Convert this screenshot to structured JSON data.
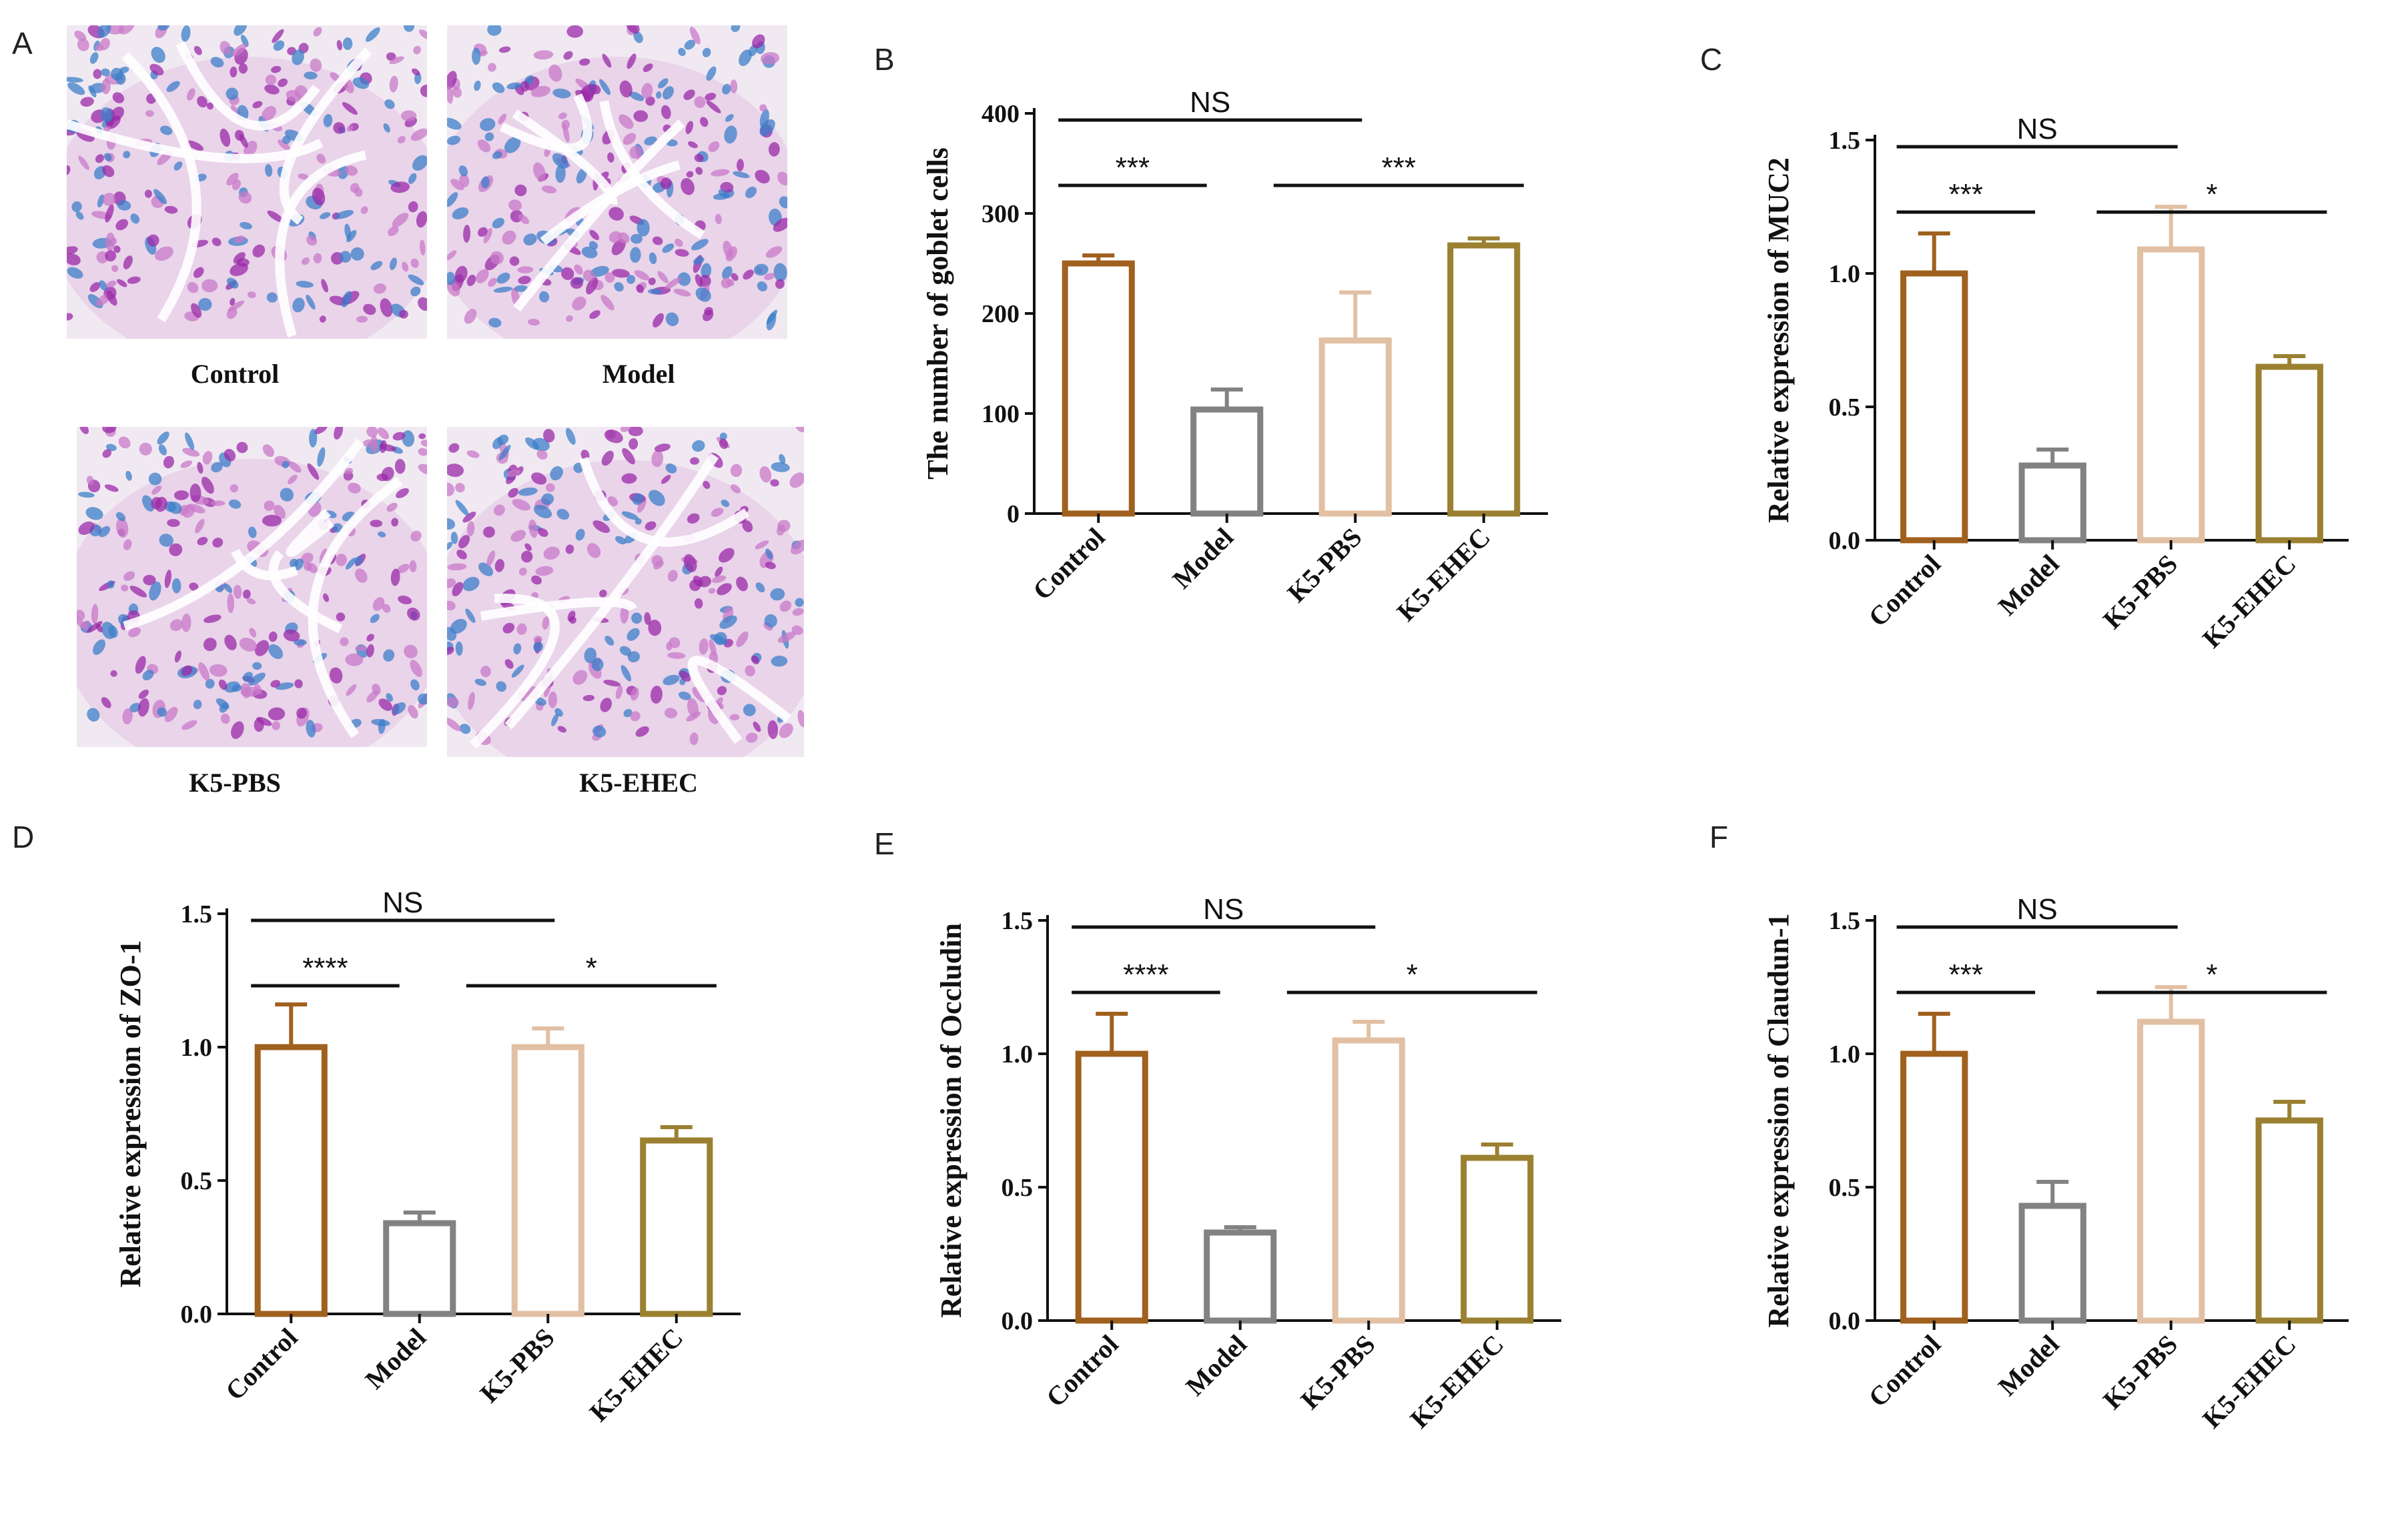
{
  "panels": {
    "A": "A",
    "B": "B",
    "C": "C",
    "D": "D",
    "E": "E",
    "F": "F"
  },
  "micrographs": [
    {
      "label": "Control"
    },
    {
      "label": "Model"
    },
    {
      "label": "K5-PBS"
    },
    {
      "label": "K5-EHEC"
    }
  ],
  "colors": {
    "Control": "#a0601e",
    "Model": "#828282",
    "K5-PBS": "#e2c0a4",
    "K5-EHEC": "#9a8030",
    "tissue_pink": "#c87ac8",
    "tissue_blue": "#3c7fc8",
    "tissue_magenta": "#9a2aa8"
  },
  "chart_data": [
    {
      "id": "B",
      "type": "bar",
      "ylabel": "The number of goblet cells",
      "categories": [
        "Control",
        "Model",
        "K5-PBS",
        "K5-EHEC"
      ],
      "values": [
        250,
        104,
        173,
        268
      ],
      "errors": [
        8,
        20,
        48,
        7
      ],
      "ylim": [
        0,
        400
      ],
      "yticks": [
        "0",
        "100",
        "200",
        "300",
        "400"
      ],
      "tick_values": [
        0,
        100,
        200,
        300,
        400
      ],
      "comparisons": [
        {
          "label": "NS",
          "from": 0,
          "to": 2,
          "level": 0
        },
        {
          "label": "***",
          "from": 0,
          "to": 1,
          "level": 1
        },
        {
          "label": "***",
          "from": 1,
          "to": 3,
          "level": 1
        }
      ]
    },
    {
      "id": "C",
      "type": "bar",
      "ylabel": "Relative expression of MUC2",
      "categories": [
        "Control",
        "Model",
        "K5-PBS",
        "K5-EHEC"
      ],
      "values": [
        1.0,
        0.28,
        1.09,
        0.65
      ],
      "errors": [
        0.15,
        0.06,
        0.16,
        0.04
      ],
      "ylim": [
        0,
        1.5
      ],
      "yticks": [
        "0.0",
        "0.5",
        "1.0",
        "1.5"
      ],
      "tick_values": [
        0,
        0.5,
        1.0,
        1.5
      ],
      "comparisons": [
        {
          "label": "NS",
          "from": 0,
          "to": 2,
          "level": 0
        },
        {
          "label": "***",
          "from": 0,
          "to": 1,
          "level": 1
        },
        {
          "label": "*",
          "from": 1,
          "to": 3,
          "level": 1
        }
      ]
    },
    {
      "id": "D",
      "type": "bar",
      "ylabel": "Relative expression of ZO-1",
      "categories": [
        "Control",
        "Model",
        "K5-PBS",
        "K5-EHEC"
      ],
      "values": [
        1.0,
        0.34,
        1.0,
        0.65
      ],
      "errors": [
        0.16,
        0.04,
        0.07,
        0.05
      ],
      "ylim": [
        0,
        1.5
      ],
      "yticks": [
        "0.0",
        "0.5",
        "1.0",
        "1.5"
      ],
      "tick_values": [
        0,
        0.5,
        1.0,
        1.5
      ],
      "comparisons": [
        {
          "label": "NS",
          "from": 0,
          "to": 2,
          "level": 0
        },
        {
          "label": "****",
          "from": 0,
          "to": 1,
          "level": 1
        },
        {
          "label": "*",
          "from": 1,
          "to": 3,
          "level": 1
        }
      ]
    },
    {
      "id": "E",
      "type": "bar",
      "ylabel": "Relative expression of Occludin",
      "categories": [
        "Control",
        "Model",
        "K5-PBS",
        "K5-EHEC"
      ],
      "values": [
        1.0,
        0.33,
        1.05,
        0.61
      ],
      "errors": [
        0.15,
        0.02,
        0.07,
        0.05
      ],
      "ylim": [
        0,
        1.5
      ],
      "yticks": [
        "0.0",
        "0.5",
        "1.0",
        "1.5"
      ],
      "tick_values": [
        0,
        0.5,
        1.0,
        1.5
      ],
      "comparisons": [
        {
          "label": "NS",
          "from": 0,
          "to": 2,
          "level": 0
        },
        {
          "label": "****",
          "from": 0,
          "to": 1,
          "level": 1
        },
        {
          "label": "*",
          "from": 1,
          "to": 3,
          "level": 1
        }
      ]
    },
    {
      "id": "F",
      "type": "bar",
      "ylabel": "Relative expression of Claudun-1",
      "categories": [
        "Control",
        "Model",
        "K5-PBS",
        "K5-EHEC"
      ],
      "values": [
        1.0,
        0.43,
        1.12,
        0.75
      ],
      "errors": [
        0.15,
        0.09,
        0.13,
        0.07
      ],
      "ylim": [
        0,
        1.5
      ],
      "yticks": [
        "0.0",
        "0.5",
        "1.0",
        "1.5"
      ],
      "tick_values": [
        0,
        0.5,
        1.0,
        1.5
      ],
      "comparisons": [
        {
          "label": "NS",
          "from": 0,
          "to": 2,
          "level": 0
        },
        {
          "label": "***",
          "from": 0,
          "to": 1,
          "level": 1
        },
        {
          "label": "*",
          "from": 1,
          "to": 3,
          "level": 1
        }
      ]
    }
  ]
}
